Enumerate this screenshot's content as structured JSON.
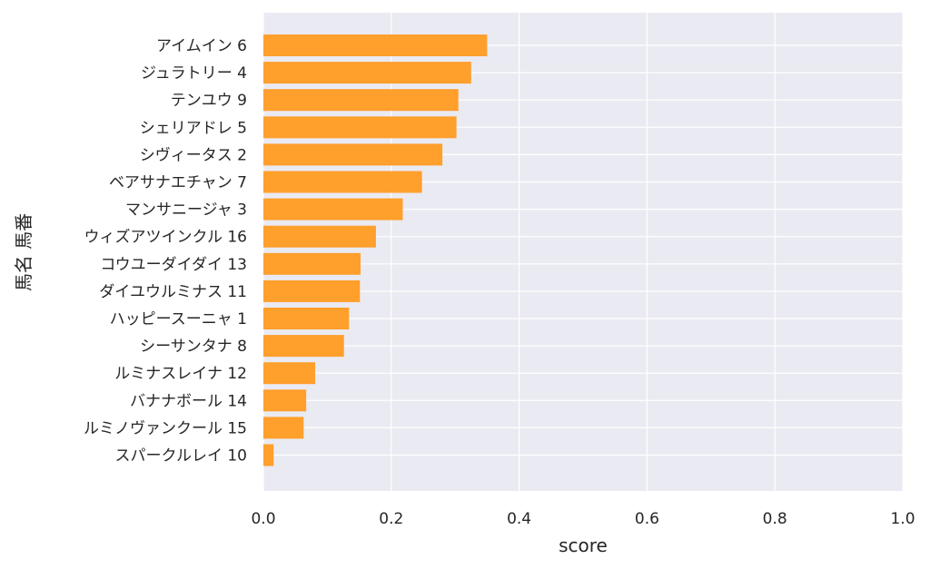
{
  "chart_data": {
    "type": "bar",
    "orientation": "horizontal",
    "xlabel": "score",
    "ylabel": "馬名 馬番",
    "xlim": [
      0.0,
      1.0
    ],
    "xticks": [
      "0.0",
      "0.2",
      "0.4",
      "0.6",
      "0.8",
      "1.0"
    ],
    "grid": true,
    "bar_color": "#ff9f2c",
    "background_color": "#eaeaf2",
    "categories": [
      "アイムイン 6",
      "ジュラトリー 4",
      "テンユウ 9",
      "シェリアドレ 5",
      "シヴィータス 2",
      "ベアサナエチャン 7",
      "マンサニージャ 3",
      "ウィズアツインクル 16",
      "コウユーダイダイ 13",
      "ダイユウルミナス 11",
      "ハッピースーニャ 1",
      "シーサンタナ 8",
      "ルミナスレイナ 12",
      "バナナボール 14",
      "ルミノヴァンクール 15",
      "スパークルレイ 10"
    ],
    "values": [
      0.35,
      0.325,
      0.305,
      0.302,
      0.28,
      0.248,
      0.218,
      0.176,
      0.152,
      0.151,
      0.134,
      0.126,
      0.081,
      0.067,
      0.063,
      0.016
    ]
  }
}
